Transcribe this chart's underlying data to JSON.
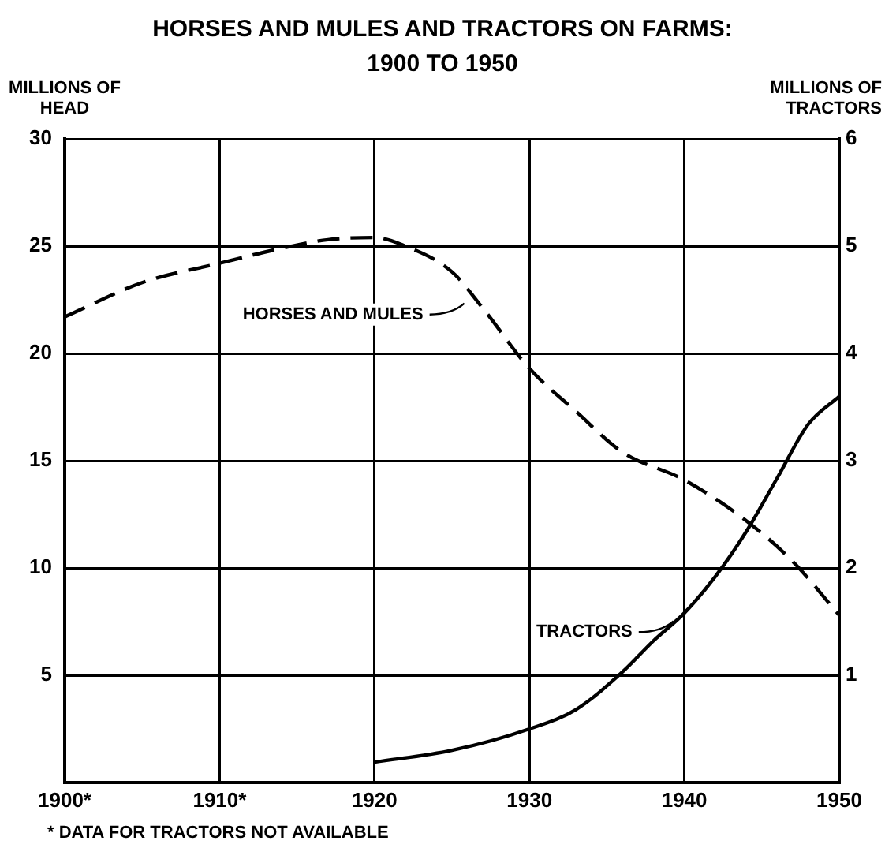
{
  "chart_data": {
    "type": "line",
    "title": "HORSES AND MULES AND TRACTORS ON FARMS: 1900 TO 1950",
    "ylabel": "MILLIONS OF HEAD",
    "y2label": "MILLIONS OF TRACTORS",
    "xlim": [
      1900,
      1950
    ],
    "xticks": [
      {
        "value": 1900,
        "label": "1900*"
      },
      {
        "value": 1910,
        "label": "1910*"
      },
      1920,
      1930,
      1940,
      1950
    ],
    "ylim": [
      0,
      30
    ],
    "yticks": [
      {
        "value": 0,
        "label": null
      },
      5,
      10,
      15,
      20,
      25,
      30
    ],
    "y2lim": [
      0,
      6
    ],
    "y2ticks": [
      1,
      2,
      3,
      4,
      5,
      6
    ],
    "grid": true,
    "legend": false,
    "marker": "none",
    "series": [
      {
        "color": "#000000",
        "line_style": "dashed",
        "x": [
          1900,
          1905,
          1910,
          1914,
          1917,
          1920,
          1922,
          1925,
          1927,
          1930,
          1933,
          1936,
          1940,
          1944,
          1947,
          1950
        ],
        "values": [
          21.7,
          23.3,
          24.2,
          24.9,
          25.3,
          25.4,
          25.0,
          23.8,
          22.1,
          19.3,
          17.3,
          15.4,
          14.1,
          12.2,
          10.3,
          7.8
        ]
      },
      {
        "color": "#000000",
        "line_style": "solid",
        "axis": "y2",
        "x": [
          1920,
          1925,
          1930,
          1933,
          1936,
          1938,
          1940,
          1942,
          1944,
          1946,
          1948,
          1950
        ],
        "values": [
          0.19,
          0.3,
          0.5,
          0.68,
          1.03,
          1.32,
          1.58,
          1.92,
          2.34,
          2.84,
          3.34,
          3.6
        ]
      }
    ],
    "annotations": [
      {
        "text": "HORSES AND MULES",
        "x": 1926,
        "y": 22.4
      },
      {
        "text": "TRACTORS",
        "x": 1939.5,
        "y": 7.6
      },
      "* DATA FOR TRACTORS NOT AVAILABLE"
    ]
  }
}
